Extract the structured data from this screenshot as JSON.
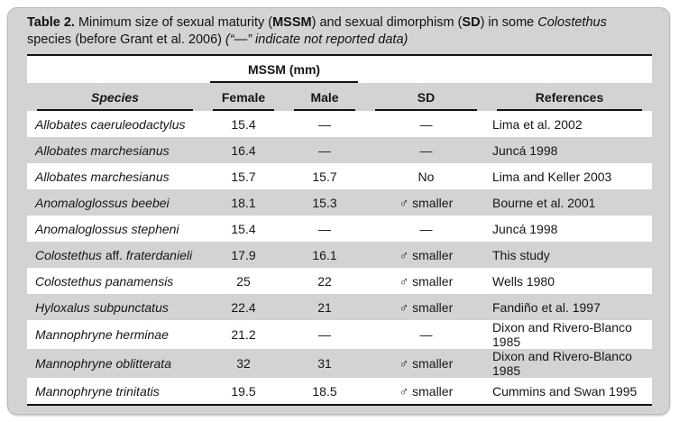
{
  "caption": {
    "label": "Table 2.",
    "part_mssm_pre": " Minimum size of sexual maturity (",
    "mssm_abbr": "MSSM",
    "part_sd_pre": ") and sexual dimorphism (",
    "sd_abbr": "SD",
    "part_genus_pre": ") in some ",
    "genus": "Colostethus",
    "part_grant": " species (before Grant et al. 2006) ",
    "note": "(“—” indicate not reported data)"
  },
  "table": {
    "group_header": "MSSM (mm)",
    "columns": [
      "Species",
      "Female",
      "Male",
      "SD",
      "References"
    ],
    "rows": [
      {
        "species": "Allobates caeruleodactylus",
        "female": "15.4",
        "male": "—",
        "sd": "—",
        "reference": "Lima et al. 2002"
      },
      {
        "species": "Allobates marchesianus",
        "female": "16.4",
        "male": "—",
        "sd": "—",
        "reference": "Juncá 1998"
      },
      {
        "species": "Allobates marchesianus",
        "female": "15.7",
        "male": "15.7",
        "sd": "No",
        "reference": "Lima and Keller 2003"
      },
      {
        "species": "Anomaloglossus beebei",
        "female": "18.1",
        "male": "15.3",
        "sd": "♂ smaller",
        "reference": "Bourne et al. 2001"
      },
      {
        "species": "Anomaloglossus stepheni",
        "female": "15.4",
        "male": "—",
        "sd": "—",
        "reference": "Juncá 1998"
      },
      {
        "species": "Colostethus aff. fraterdanieli",
        "female": "17.9",
        "male": "16.1",
        "sd": "♂ smaller",
        "reference": "This study"
      },
      {
        "species": "Colostethus panamensis",
        "female": "25",
        "male": "22",
        "sd": "♂ smaller",
        "reference": "Wells 1980"
      },
      {
        "species": "Hyloxalus subpunctatus",
        "female": "22.4",
        "male": "21",
        "sd": "♂ smaller",
        "reference": "Fandiño et al. 1997"
      },
      {
        "species": "Mannophryne herminae",
        "female": "21.2",
        "male": "—",
        "sd": "—",
        "reference": "Dixon and Rivero-Blanco 1985"
      },
      {
        "species": "Mannophryne oblitterata",
        "female": "32",
        "male": "31",
        "sd": "♂ smaller",
        "reference": "Dixon and Rivero-Blanco 1985"
      },
      {
        "species": "Mannophryne trinitatis",
        "female": "19.5",
        "male": "18.5",
        "sd": "♂ smaller",
        "reference": "Cummins and Swan 1995"
      }
    ]
  },
  "colors": {
    "panel_gray": "#d3d3d3",
    "row_white": "#ffffff",
    "rule_black": "#121212",
    "text": "#161616"
  }
}
